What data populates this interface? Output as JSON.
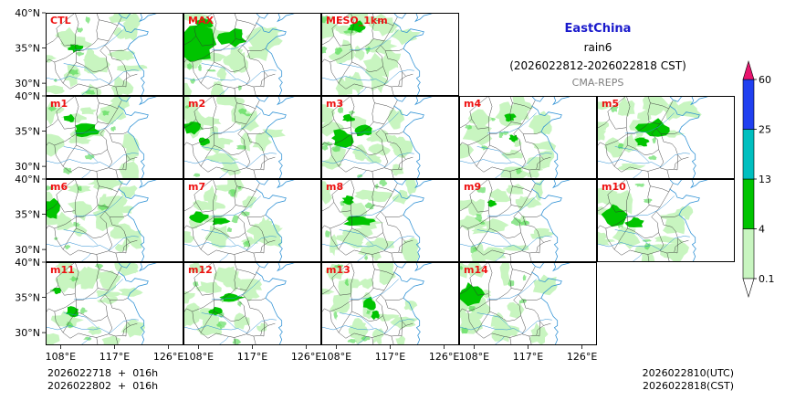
{
  "header": {
    "region": "EastChina",
    "variable": "rain6",
    "period": "(2026022812-2026022818 CST)",
    "source": "CMA-REPS"
  },
  "footer": {
    "init_utc_line": "2026022718  +  016h",
    "init_cst_line": "2026022802  +  016h",
    "valid_utc": "2026022810(UTC)",
    "valid_cst": "2026022818(CST)"
  },
  "colors": {
    "light_green": "#c8f5c0",
    "mid_green": "#39d439",
    "dark_green": "#00c400",
    "teal": "#00bfbf",
    "blue": "#2040f0",
    "magenta": "#e8156e",
    "coast": "#2a8fd4",
    "border": "#333333",
    "label": "#ee1111"
  },
  "chart_data": {
    "type": "heatmap",
    "x_ticks": [
      "108°E",
      "117°E",
      "126°E"
    ],
    "y_ticks": [
      "40°N",
      "35°N",
      "30°N"
    ],
    "xlim": [
      105.5,
      128.5
    ],
    "ylim": [
      28.2,
      40
    ],
    "colorbar": {
      "levels": [
        0.1,
        4,
        13,
        25,
        60
      ],
      "tick_labels": [
        "0.1",
        "4",
        "13",
        "25",
        "60"
      ],
      "colors": [
        "#c8f5c0",
        "#00c400",
        "#00bfbf",
        "#2040f0"
      ],
      "extend": "both"
    },
    "panels": [
      {
        "name": "CTL",
        "row": 0,
        "col": 0,
        "seed": 11,
        "heavy": [
          [
            110.5,
            35.0,
            1.2,
            0.6
          ]
        ]
      },
      {
        "name": "MAX",
        "row": 0,
        "col": 1,
        "seed": 23,
        "heavy": [
          [
            107.5,
            35.5,
            3.8,
            2.4
          ],
          [
            113.5,
            36.5,
            2.4,
            1.2
          ],
          [
            109.0,
            38.5,
            1.6,
            0.8
          ]
        ]
      },
      {
        "name": "MESO_1km",
        "row": 0,
        "col": 2,
        "seed": 37,
        "heavy": [
          [
            111.5,
            38.0,
            1.6,
            0.8
          ]
        ]
      },
      {
        "name": "m1",
        "row": 1,
        "col": 0,
        "seed": 41,
        "heavy": [
          [
            112.0,
            35.0,
            2.4,
            1.0
          ],
          [
            109.5,
            36.8,
            1.0,
            0.6
          ]
        ]
      },
      {
        "name": "m2",
        "row": 1,
        "col": 1,
        "seed": 53,
        "heavy": [
          [
            107.0,
            35.5,
            1.4,
            1.0
          ],
          [
            109.0,
            33.5,
            1.0,
            0.6
          ]
        ]
      },
      {
        "name": "m3",
        "row": 1,
        "col": 2,
        "seed": 67,
        "heavy": [
          [
            109.0,
            34.0,
            2.0,
            1.2
          ],
          [
            112.5,
            35.0,
            1.4,
            0.8
          ],
          [
            110.0,
            36.8,
            1.0,
            0.6
          ]
        ]
      },
      {
        "name": "m4",
        "row": 1,
        "col": 3,
        "seed": 71,
        "heavy": [
          [
            114.0,
            37.0,
            1.0,
            0.6
          ],
          [
            114.5,
            34.0,
            0.8,
            0.5
          ]
        ]
      },
      {
        "name": "m5",
        "row": 1,
        "col": 4,
        "seed": 83,
        "heavy": [
          [
            115.0,
            35.5,
            2.8,
            1.2
          ],
          [
            113.0,
            33.5,
            1.2,
            0.7
          ]
        ]
      },
      {
        "name": "m6",
        "row": 2,
        "col": 0,
        "seed": 97,
        "heavy": [
          [
            106.5,
            35.5,
            1.5,
            1.6
          ]
        ]
      },
      {
        "name": "m7",
        "row": 2,
        "col": 1,
        "seed": 101,
        "heavy": [
          [
            108.0,
            34.5,
            1.6,
            0.8
          ],
          [
            111.5,
            34.0,
            1.6,
            0.6
          ]
        ]
      },
      {
        "name": "m8",
        "row": 2,
        "col": 2,
        "seed": 113,
        "heavy": [
          [
            112.0,
            34.0,
            2.8,
            0.8
          ],
          [
            110.0,
            37.0,
            1.0,
            0.6
          ]
        ]
      },
      {
        "name": "m9",
        "row": 2,
        "col": 3,
        "seed": 127,
        "heavy": [
          [
            111.0,
            36.5,
            0.9,
            0.5
          ]
        ]
      },
      {
        "name": "m10",
        "row": 2,
        "col": 4,
        "seed": 131,
        "heavy": [
          [
            108.5,
            35.0,
            2.0,
            1.6
          ],
          [
            112.0,
            33.8,
            1.6,
            0.7
          ]
        ]
      },
      {
        "name": "m11",
        "row": 3,
        "col": 0,
        "seed": 137,
        "heavy": [
          [
            110.0,
            33.0,
            1.2,
            0.7
          ],
          [
            107.5,
            36.0,
            0.8,
            0.5
          ]
        ]
      },
      {
        "name": "m12",
        "row": 3,
        "col": 1,
        "seed": 149,
        "heavy": [
          [
            113.5,
            35.0,
            2.0,
            0.7
          ],
          [
            111.0,
            33.0,
            1.2,
            0.6
          ]
        ]
      },
      {
        "name": "m13",
        "row": 3,
        "col": 2,
        "seed": 157,
        "heavy": [
          [
            113.5,
            34.0,
            1.2,
            1.0
          ],
          [
            114.5,
            32.5,
            0.8,
            0.6
          ]
        ]
      },
      {
        "name": "m14",
        "row": 3,
        "col": 3,
        "seed": 163,
        "heavy": [
          [
            107.5,
            35.5,
            2.0,
            1.5
          ]
        ]
      }
    ]
  }
}
